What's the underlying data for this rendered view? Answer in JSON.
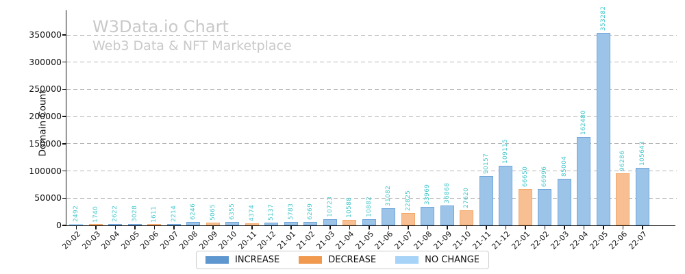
{
  "header": {
    "title": "W3Data.io Chart",
    "subtitle": "Web3 Data & NFT Marketplace"
  },
  "colors": {
    "increase": "#5e97d0",
    "decrease": "#f0994f",
    "no_change": "#a6d3f7",
    "increase_fill": "#9cc3e8",
    "increase_edge": "#6fa5da",
    "decrease_fill": "#f7bf92",
    "decrease_edge": "#f2a768",
    "no_change_fill": "#c4e1f8",
    "no_change_edge": "#a6d3f7",
    "value_label_text": "#48c8cd",
    "title_text": "#c9c9c9",
    "grid": "#b4b4b4",
    "axis": "#111111"
  },
  "chart_data": {
    "type": "bar",
    "title": "W3Data.io Chart",
    "subtitle": "Web3 Data & NFT Marketplace",
    "xlabel": "",
    "ylabel": "Domain Count",
    "ylim": [
      0,
      395000
    ],
    "yticks": [
      0,
      50000,
      100000,
      150000,
      200000,
      250000,
      300000,
      350000
    ],
    "grid": "dashed horizontal",
    "legend_position": "bottom-center",
    "categories": [
      "20-02",
      "20-03",
      "20-04",
      "20-05",
      "20-06",
      "20-07",
      "20-08",
      "20-09",
      "20-10",
      "20-11",
      "20-12",
      "21-01",
      "21-02",
      "21-03",
      "21-04",
      "21-05",
      "21-06",
      "21-07",
      "21-08",
      "21-09",
      "21-10",
      "21-11",
      "21-12",
      "22-01",
      "22-02",
      "22-03",
      "22-04",
      "22-05",
      "22-06",
      "22-07"
    ],
    "values": [
      2492,
      1740,
      2622,
      3028,
      1611,
      2214,
      6246,
      5065,
      6355,
      4374,
      5137,
      5783,
      6269,
      10723,
      10588,
      10882,
      31082,
      22825,
      33969,
      36868,
      27620,
      90157,
      109115,
      66650,
      66996,
      85004,
      162480,
      353282,
      96286,
      105643
    ],
    "statuses": [
      "no_change",
      "decrease",
      "increase",
      "increase",
      "decrease",
      "increase",
      "increase",
      "decrease",
      "increase",
      "decrease",
      "increase",
      "increase",
      "increase",
      "increase",
      "decrease",
      "increase",
      "increase",
      "decrease",
      "increase",
      "increase",
      "decrease",
      "increase",
      "increase",
      "decrease",
      "increase",
      "increase",
      "increase",
      "increase",
      "decrease",
      "increase"
    ],
    "legend": [
      {
        "label": "INCREASE",
        "key": "increase"
      },
      {
        "label": "DECREASE",
        "key": "decrease"
      },
      {
        "label": "NO CHANGE",
        "key": "no_change"
      }
    ]
  }
}
